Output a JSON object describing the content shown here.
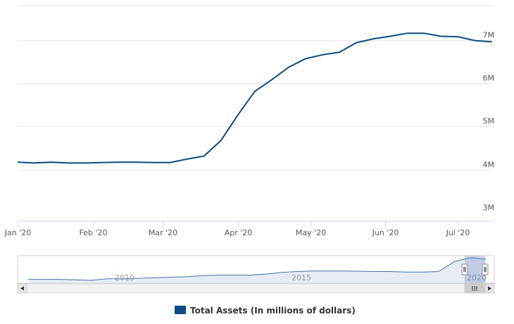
{
  "chart_data": {
    "type": "line",
    "title": "",
    "xlabel": "",
    "ylabel": "",
    "x_ticks": [
      "Jan '20",
      "Feb '20",
      "Mar '20",
      "Apr '20",
      "May '20",
      "Jun '20",
      "Jul '20"
    ],
    "y_ticks": [
      "3M",
      "4M",
      "5M",
      "6M",
      "7M"
    ],
    "ylim": [
      2800000,
      7800000
    ],
    "xlim": [
      "2020-01-01",
      "2020-07-16"
    ],
    "grid": true,
    "legend_position": "bottom-center",
    "series": [
      {
        "name": "Total Assets (In millions of dollars)",
        "color": "#0b4a83",
        "points": [
          {
            "x": "2020-01-01",
            "y": 4170000
          },
          {
            "x": "2020-01-08",
            "y": 4150000
          },
          {
            "x": "2020-01-15",
            "y": 4170000
          },
          {
            "x": "2020-01-22",
            "y": 4150000
          },
          {
            "x": "2020-01-29",
            "y": 4150000
          },
          {
            "x": "2020-02-05",
            "y": 4160000
          },
          {
            "x": "2020-02-12",
            "y": 4170000
          },
          {
            "x": "2020-02-19",
            "y": 4170000
          },
          {
            "x": "2020-02-26",
            "y": 4160000
          },
          {
            "x": "2020-03-04",
            "y": 4160000
          },
          {
            "x": "2020-03-11",
            "y": 4240000
          },
          {
            "x": "2020-03-18",
            "y": 4310000
          },
          {
            "x": "2020-03-25",
            "y": 4670000
          },
          {
            "x": "2020-04-01",
            "y": 5260000
          },
          {
            "x": "2020-04-08",
            "y": 5810000
          },
          {
            "x": "2020-04-15",
            "y": 6080000
          },
          {
            "x": "2020-04-22",
            "y": 6370000
          },
          {
            "x": "2020-04-29",
            "y": 6570000
          },
          {
            "x": "2020-05-06",
            "y": 6660000
          },
          {
            "x": "2020-05-13",
            "y": 6720000
          },
          {
            "x": "2020-05-20",
            "y": 6940000
          },
          {
            "x": "2020-05-27",
            "y": 7030000
          },
          {
            "x": "2020-06-03",
            "y": 7090000
          },
          {
            "x": "2020-06-10",
            "y": 7160000
          },
          {
            "x": "2020-06-17",
            "y": 7160000
          },
          {
            "x": "2020-06-24",
            "y": 7090000
          },
          {
            "x": "2020-07-01",
            "y": 7080000
          },
          {
            "x": "2020-07-08",
            "y": 6990000
          },
          {
            "x": "2020-07-15",
            "y": 6960000
          }
        ]
      }
    ],
    "navigator": {
      "labels": [
        "2010",
        "2015",
        "2020"
      ],
      "values": [
        0.88,
        0.88,
        0.88,
        0.9,
        0.92,
        0.86,
        0.86,
        0.84,
        0.82,
        0.8,
        0.78,
        0.74,
        0.72,
        0.72,
        0.72,
        0.68,
        0.62,
        0.58,
        0.56,
        0.56,
        0.56,
        0.57,
        0.58,
        0.58,
        0.6,
        0.6,
        0.58,
        0.2,
        0.05,
        0.1
      ]
    }
  },
  "legend": {
    "label": "Total Assets (In millions of dollars)",
    "color": "#0b4a83"
  },
  "scrollbar": {
    "left_arrow": "◂",
    "right_arrow": "▸",
    "grip": "|||"
  }
}
